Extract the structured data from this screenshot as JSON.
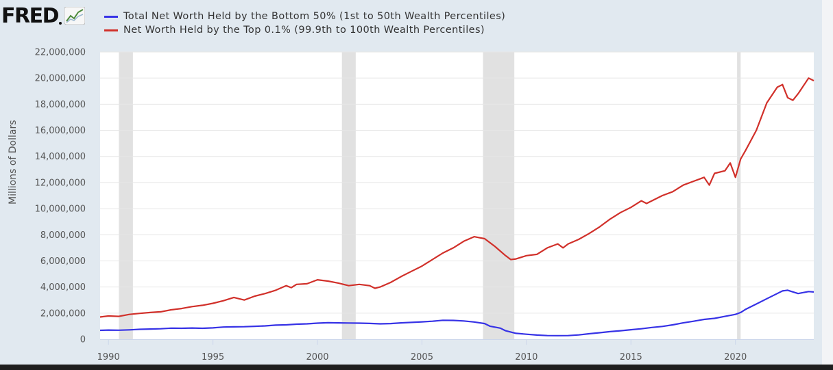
{
  "logo": {
    "text": "FRED",
    "icon": "chart-line-icon"
  },
  "chart_data": {
    "type": "line",
    "title": "",
    "xlabel": "",
    "ylabel": "Millions of Dollars",
    "xlim": [
      1989.6,
      2023.75
    ],
    "ylim": [
      0,
      22000000
    ],
    "y_ticks": [
      0,
      2000000,
      4000000,
      6000000,
      8000000,
      10000000,
      12000000,
      14000000,
      16000000,
      18000000,
      20000000,
      22000000
    ],
    "y_tick_labels": [
      "0",
      "2,000,000",
      "4,000,000",
      "6,000,000",
      "8,000,000",
      "10,000,000",
      "12,000,000",
      "14,000,000",
      "16,000,000",
      "18,000,000",
      "20,000,000",
      "22,000,000"
    ],
    "x_ticks": [
      1990,
      1995,
      2000,
      2005,
      2010,
      2015,
      2020
    ],
    "x_tick_labels": [
      "1990",
      "1995",
      "2000",
      "2005",
      "2010",
      "2015",
      "2020"
    ],
    "grid": true,
    "legend_position": "top",
    "recessions": [
      [
        1990.5,
        1991.17
      ],
      [
        2001.17,
        2001.83
      ],
      [
        2007.92,
        2009.42
      ],
      [
        2020.08,
        2020.25
      ]
    ],
    "series": [
      {
        "name": "Total Net Worth Held by the Bottom 50% (1st to 50th Wealth Percentiles)",
        "color": "#3632e6",
        "points": [
          [
            1989.6,
            680000
          ],
          [
            1990,
            700000
          ],
          [
            1990.5,
            690000
          ],
          [
            1991,
            720000
          ],
          [
            1991.5,
            760000
          ],
          [
            1992,
            780000
          ],
          [
            1992.5,
            800000
          ],
          [
            1993,
            850000
          ],
          [
            1993.5,
            840000
          ],
          [
            1994,
            860000
          ],
          [
            1994.5,
            840000
          ],
          [
            1995,
            870000
          ],
          [
            1995.5,
            930000
          ],
          [
            1996,
            950000
          ],
          [
            1996.5,
            960000
          ],
          [
            1997,
            990000
          ],
          [
            1997.5,
            1020000
          ],
          [
            1998,
            1080000
          ],
          [
            1998.5,
            1100000
          ],
          [
            1999,
            1150000
          ],
          [
            1999.5,
            1180000
          ],
          [
            2000,
            1230000
          ],
          [
            2000.5,
            1260000
          ],
          [
            2001,
            1250000
          ],
          [
            2001.5,
            1240000
          ],
          [
            2002,
            1230000
          ],
          [
            2002.5,
            1210000
          ],
          [
            2003,
            1180000
          ],
          [
            2003.5,
            1200000
          ],
          [
            2004,
            1250000
          ],
          [
            2004.5,
            1290000
          ],
          [
            2005,
            1330000
          ],
          [
            2005.5,
            1380000
          ],
          [
            2006,
            1450000
          ],
          [
            2006.5,
            1440000
          ],
          [
            2007,
            1400000
          ],
          [
            2007.5,
            1320000
          ],
          [
            2008,
            1200000
          ],
          [
            2008.25,
            1000000
          ],
          [
            2008.75,
            850000
          ],
          [
            2009,
            650000
          ],
          [
            2009.5,
            450000
          ],
          [
            2010,
            380000
          ],
          [
            2010.5,
            320000
          ],
          [
            2011,
            280000
          ],
          [
            2011.5,
            270000
          ],
          [
            2012,
            280000
          ],
          [
            2012.5,
            330000
          ],
          [
            2013,
            420000
          ],
          [
            2013.5,
            500000
          ],
          [
            2014,
            580000
          ],
          [
            2014.5,
            650000
          ],
          [
            2015,
            730000
          ],
          [
            2015.5,
            800000
          ],
          [
            2016,
            900000
          ],
          [
            2016.5,
            980000
          ],
          [
            2017,
            1100000
          ],
          [
            2017.5,
            1250000
          ],
          [
            2018,
            1380000
          ],
          [
            2018.5,
            1520000
          ],
          [
            2019,
            1600000
          ],
          [
            2019.5,
            1750000
          ],
          [
            2020,
            1900000
          ],
          [
            2020.25,
            2050000
          ],
          [
            2020.5,
            2300000
          ],
          [
            2021,
            2700000
          ],
          [
            2021.5,
            3100000
          ],
          [
            2022,
            3500000
          ],
          [
            2022.25,
            3700000
          ],
          [
            2022.5,
            3750000
          ],
          [
            2023,
            3500000
          ],
          [
            2023.5,
            3650000
          ],
          [
            2023.75,
            3620000
          ]
        ]
      },
      {
        "name": "Net Worth Held by the Top 0.1% (99.9th to 100th Wealth Percentiles)",
        "color": "#d1302a",
        "points": [
          [
            1989.6,
            1700000
          ],
          [
            1990,
            1780000
          ],
          [
            1990.5,
            1750000
          ],
          [
            1991,
            1900000
          ],
          [
            1991.5,
            1980000
          ],
          [
            1992,
            2050000
          ],
          [
            1992.5,
            2100000
          ],
          [
            1993,
            2250000
          ],
          [
            1993.5,
            2350000
          ],
          [
            1994,
            2500000
          ],
          [
            1994.5,
            2600000
          ],
          [
            1995,
            2750000
          ],
          [
            1995.5,
            2950000
          ],
          [
            1996,
            3200000
          ],
          [
            1996.25,
            3100000
          ],
          [
            1996.5,
            3000000
          ],
          [
            1997,
            3300000
          ],
          [
            1997.5,
            3500000
          ],
          [
            1998,
            3750000
          ],
          [
            1998.5,
            4100000
          ],
          [
            1998.75,
            3950000
          ],
          [
            1999,
            4200000
          ],
          [
            1999.5,
            4250000
          ],
          [
            2000,
            4550000
          ],
          [
            2000.5,
            4450000
          ],
          [
            2001,
            4300000
          ],
          [
            2001.5,
            4100000
          ],
          [
            2002,
            4200000
          ],
          [
            2002.5,
            4100000
          ],
          [
            2002.75,
            3900000
          ],
          [
            2003,
            4000000
          ],
          [
            2003.5,
            4350000
          ],
          [
            2004,
            4800000
          ],
          [
            2004.5,
            5200000
          ],
          [
            2005,
            5600000
          ],
          [
            2005.5,
            6100000
          ],
          [
            2006,
            6600000
          ],
          [
            2006.5,
            7000000
          ],
          [
            2007,
            7500000
          ],
          [
            2007.5,
            7850000
          ],
          [
            2008,
            7700000
          ],
          [
            2008.5,
            7100000
          ],
          [
            2009,
            6400000
          ],
          [
            2009.25,
            6100000
          ],
          [
            2009.5,
            6150000
          ],
          [
            2010,
            6400000
          ],
          [
            2010.5,
            6500000
          ],
          [
            2011,
            7000000
          ],
          [
            2011.5,
            7300000
          ],
          [
            2011.75,
            7000000
          ],
          [
            2012,
            7300000
          ],
          [
            2012.5,
            7650000
          ],
          [
            2013,
            8100000
          ],
          [
            2013.5,
            8600000
          ],
          [
            2014,
            9200000
          ],
          [
            2014.5,
            9700000
          ],
          [
            2015,
            10100000
          ],
          [
            2015.5,
            10600000
          ],
          [
            2015.75,
            10400000
          ],
          [
            2016,
            10600000
          ],
          [
            2016.5,
            11000000
          ],
          [
            2017,
            11300000
          ],
          [
            2017.5,
            11800000
          ],
          [
            2018,
            12100000
          ],
          [
            2018.5,
            12400000
          ],
          [
            2018.75,
            11800000
          ],
          [
            2019,
            12700000
          ],
          [
            2019.5,
            12900000
          ],
          [
            2019.75,
            13500000
          ],
          [
            2020,
            12400000
          ],
          [
            2020.25,
            13800000
          ],
          [
            2020.5,
            14500000
          ],
          [
            2021,
            16000000
          ],
          [
            2021.5,
            18100000
          ],
          [
            2022,
            19300000
          ],
          [
            2022.25,
            19500000
          ],
          [
            2022.5,
            18500000
          ],
          [
            2022.75,
            18300000
          ],
          [
            2023,
            18800000
          ],
          [
            2023.5,
            20000000
          ],
          [
            2023.75,
            19800000
          ]
        ]
      }
    ]
  }
}
